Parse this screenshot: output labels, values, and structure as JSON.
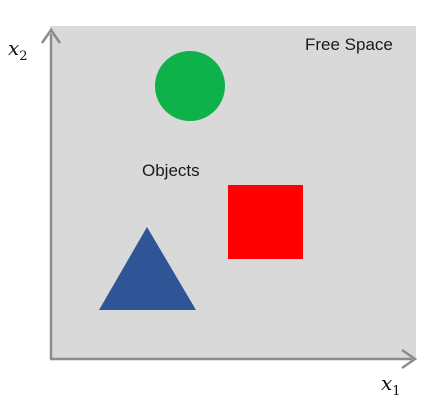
{
  "free_space_label": "Free Space",
  "objects_label": "Objects",
  "axes": {
    "x": {
      "var": "x",
      "sub": "1"
    },
    "y": {
      "var": "x",
      "sub": "2"
    }
  },
  "colors": {
    "free_space": "#d9d9d9",
    "axis": "#8c8c8c",
    "circle": "#0fb14b",
    "square": "#ff0000",
    "triangle": "#2f5597"
  }
}
